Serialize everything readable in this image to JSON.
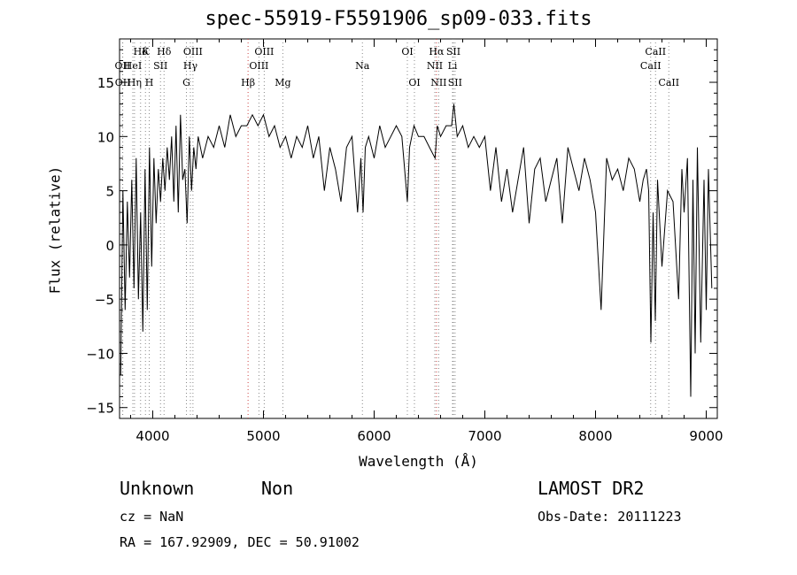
{
  "chart_data": {
    "type": "line",
    "title": "spec-55919-F5591906_sp09-033.fits",
    "xlabel": "Wavelength (Å)",
    "ylabel": "Flux (relative)",
    "xlim": [
      3700,
      9100
    ],
    "ylim": [
      -16,
      19
    ],
    "xticks": [
      4000,
      5000,
      6000,
      7000,
      8000,
      9000
    ],
    "yticks": [
      -15,
      -10,
      -5,
      0,
      5,
      10,
      15
    ],
    "grid": false,
    "series": [
      {
        "x": [
          3710,
          3730,
          3750,
          3770,
          3790,
          3810,
          3830,
          3850,
          3870,
          3890,
          3910,
          3930,
          3950,
          3970,
          3990,
          4010,
          4030,
          4050,
          4070,
          4090,
          4110,
          4130,
          4150,
          4170,
          4190,
          4210,
          4230,
          4250,
          4270,
          4290,
          4310,
          4330,
          4350,
          4370,
          4390,
          4410,
          4450,
          4500,
          4550,
          4600,
          4650,
          4700,
          4750,
          4800,
          4850,
          4900,
          4950,
          5000,
          5050,
          5100,
          5150,
          5200,
          5250,
          5300,
          5350,
          5400,
          5450,
          5500,
          5550,
          5600,
          5650,
          5700,
          5750,
          5800,
          5850,
          5880,
          5900,
          5920,
          5950,
          6000,
          6050,
          6100,
          6150,
          6200,
          6250,
          6300,
          6320,
          6340,
          6360,
          6400,
          6450,
          6500,
          6550,
          6570,
          6600,
          6650,
          6700,
          6720,
          6750,
          6800,
          6850,
          6900,
          6950,
          7000,
          7050,
          7100,
          7150,
          7200,
          7250,
          7300,
          7350,
          7400,
          7450,
          7500,
          7550,
          7600,
          7650,
          7700,
          7750,
          7800,
          7850,
          7900,
          7950,
          8000,
          8050,
          8100,
          8150,
          8200,
          8250,
          8300,
          8350,
          8400,
          8430,
          8460,
          8480,
          8500,
          8520,
          8540,
          8560,
          8600,
          8650,
          8700,
          8750,
          8780,
          8800,
          8830,
          8860,
          8880,
          8900,
          8920,
          8950,
          8980,
          9000,
          9020,
          9050
        ],
        "y": [
          -12,
          5,
          -6,
          4,
          -3,
          6,
          -4,
          8,
          -5,
          3,
          -8,
          7,
          -6,
          9,
          -2,
          8,
          2,
          7,
          4,
          8,
          5,
          9,
          6,
          10,
          4,
          11,
          3,
          12,
          6,
          7,
          2,
          10,
          5,
          9,
          7,
          10,
          8,
          10,
          9,
          11,
          9,
          12,
          10,
          11,
          11,
          12,
          11,
          12,
          10,
          11,
          9,
          10,
          8,
          10,
          9,
          11,
          8,
          10,
          5,
          9,
          7,
          4,
          9,
          10,
          3,
          8,
          3,
          9,
          10,
          8,
          11,
          9,
          10,
          11,
          10,
          4,
          9,
          10,
          11,
          10,
          10,
          9,
          8,
          11,
          10,
          11,
          11,
          13,
          10,
          11,
          9,
          10,
          9,
          10,
          5,
          9,
          4,
          7,
          3,
          6,
          9,
          2,
          7,
          8,
          4,
          6,
          8,
          2,
          9,
          7,
          5,
          8,
          6,
          3,
          -6,
          8,
          6,
          7,
          5,
          8,
          7,
          4,
          6,
          7,
          5,
          -9,
          3,
          -7,
          6,
          -2,
          5,
          4,
          -5,
          7,
          3,
          8,
          -14,
          6,
          -10,
          9,
          -9,
          6,
          -6,
          7,
          -4
        ]
      }
    ],
    "lines": [
      {
        "label": "Hδ",
        "x": 3890,
        "row": 1,
        "color": "#888888"
      },
      {
        "label": "K",
        "x": 3934,
        "row": 1,
        "color": "#888888"
      },
      {
        "label": "Hδ",
        "x": 4102,
        "row": 1,
        "color": "#888888"
      },
      {
        "label": "OII",
        "x": 3727,
        "row": 2,
        "color": "#888888"
      },
      {
        "label": "HeI",
        "x": 3820,
        "row": 2,
        "color": "#888888"
      },
      {
        "label": "SII",
        "x": 4070,
        "row": 2,
        "color": "#888888"
      },
      {
        "label": "OIII",
        "x": 4363,
        "row": 1,
        "color": "#888888"
      },
      {
        "label": "Hγ",
        "x": 4340,
        "row": 2,
        "color": "#888888"
      },
      {
        "label": "OII",
        "x": 3729,
        "row": 3,
        "color": "#888888"
      },
      {
        "label": "Hη",
        "x": 3835,
        "row": 3,
        "color": "#888888"
      },
      {
        "label": "H",
        "x": 3968,
        "row": 3,
        "color": "#888888"
      },
      {
        "label": "G",
        "x": 4304,
        "row": 3,
        "color": "#888888"
      },
      {
        "label": "OIII",
        "x": 5007,
        "row": 1,
        "color": "#888888"
      },
      {
        "label": "OIII",
        "x": 4959,
        "row": 2,
        "color": "#888888"
      },
      {
        "label": "Hβ",
        "x": 4861,
        "row": 3,
        "color": "#cc4444"
      },
      {
        "label": "Mg",
        "x": 5175,
        "row": 3,
        "color": "#888888"
      },
      {
        "label": "Na",
        "x": 5894,
        "row": 2,
        "color": "#888888"
      },
      {
        "label": "OI",
        "x": 6300,
        "row": 1,
        "color": "#888888"
      },
      {
        "label": "OI",
        "x": 6364,
        "row": 3,
        "color": "#888888"
      },
      {
        "label": "Hα",
        "x": 6563,
        "row": 1,
        "color": "#cc4444"
      },
      {
        "label": "SII",
        "x": 6716,
        "row": 1,
        "color": "#888888"
      },
      {
        "label": "NII",
        "x": 6548,
        "row": 2,
        "color": "#888888"
      },
      {
        "label": "Li",
        "x": 6708,
        "row": 2,
        "color": "#888888"
      },
      {
        "label": "NII",
        "x": 6583,
        "row": 3,
        "color": "#888888"
      },
      {
        "label": "SII",
        "x": 6731,
        "row": 3,
        "color": "#888888"
      },
      {
        "label": "CaII",
        "x": 8542,
        "row": 1,
        "color": "#888888"
      },
      {
        "label": "CaII",
        "x": 8498,
        "row": 2,
        "color": "#888888"
      },
      {
        "label": "CaII",
        "x": 8662,
        "row": 3,
        "color": "#888888"
      }
    ]
  },
  "info": {
    "class": "Unknown",
    "subclass": "Non",
    "survey": "LAMOST DR2",
    "cz": "cz = NaN",
    "obs_date": "Obs-Date: 20111223",
    "coords": "RA = 167.92909, DEC =  50.91002"
  }
}
